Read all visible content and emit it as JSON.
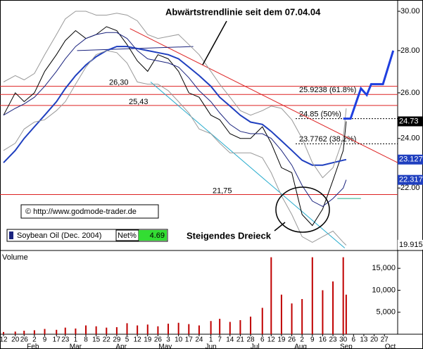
{
  "chart_data": {
    "type": "line",
    "log_scale": true,
    "title": "Abwärtstrendlinie seit dem 07.04.04",
    "pattern_label": "Steigendes Dreieck",
    "copyright": "© http://www.godmode-trader.de",
    "instrument": "Soybean Oil (Dec. 2004)",
    "net_label": "Net%",
    "net_value": 4.69,
    "net_color": "#33dd33",
    "xlim": [
      12,
      280
    ],
    "ylim": [
      19.74,
      30.6
    ],
    "yticks": [
      {
        "value": 22,
        "label": "22.00"
      },
      {
        "value": 24,
        "label": "24.00"
      },
      {
        "value": 26,
        "label": "26.00"
      },
      {
        "value": 28,
        "label": "28.00"
      },
      {
        "value": 30,
        "label": "30.00"
      }
    ],
    "xticks": [
      {
        "value": 12,
        "label": "12"
      },
      {
        "value": 20,
        "label": "20"
      },
      {
        "value": 26,
        "label": "26"
      },
      {
        "value": 33,
        "label": "2"
      },
      {
        "value": 40,
        "label": "9"
      },
      {
        "value": 48,
        "label": "17"
      },
      {
        "value": 54,
        "label": "23"
      },
      {
        "value": 61,
        "label": "1"
      },
      {
        "value": 68,
        "label": "8"
      },
      {
        "value": 75,
        "label": "15"
      },
      {
        "value": 82,
        "label": "22"
      },
      {
        "value": 89,
        "label": "29"
      },
      {
        "value": 96,
        "label": "5"
      },
      {
        "value": 103,
        "label": "12"
      },
      {
        "value": 110,
        "label": "19"
      },
      {
        "value": 117,
        "label": "26"
      },
      {
        "value": 124,
        "label": "3"
      },
      {
        "value": 131,
        "label": "10"
      },
      {
        "value": 138,
        "label": "17"
      },
      {
        "value": 145,
        "label": "24"
      },
      {
        "value": 153,
        "label": "1"
      },
      {
        "value": 159,
        "label": "7"
      },
      {
        "value": 166,
        "label": "14"
      },
      {
        "value": 173,
        "label": "21"
      },
      {
        "value": 180,
        "label": "28"
      },
      {
        "value": 188,
        "label": "6"
      },
      {
        "value": 194,
        "label": "12"
      },
      {
        "value": 201,
        "label": "19"
      },
      {
        "value": 208,
        "label": "26"
      },
      {
        "value": 215,
        "label": "2"
      },
      {
        "value": 222,
        "label": "9"
      },
      {
        "value": 229,
        "label": "16"
      },
      {
        "value": 236,
        "label": "23"
      },
      {
        "value": 243,
        "label": "30"
      },
      {
        "value": 250,
        "label": "6"
      },
      {
        "value": 257,
        "label": "13"
      },
      {
        "value": 264,
        "label": "20"
      },
      {
        "value": 271,
        "label": "27"
      }
    ],
    "month_ticks": [
      {
        "value": 32,
        "label": "Feb"
      },
      {
        "value": 61,
        "label": "Mar"
      },
      {
        "value": 92,
        "label": "Apr"
      },
      {
        "value": 122,
        "label": "May"
      },
      {
        "value": 153,
        "label": "Jun"
      },
      {
        "value": 183,
        "label": "Jul"
      },
      {
        "value": 214,
        "label": "Aug"
      },
      {
        "value": 245,
        "label": "Sep"
      },
      {
        "value": 275,
        "label": "Oct"
      }
    ],
    "x": [
      12,
      20,
      26,
      33,
      40,
      48,
      54,
      61,
      68,
      75,
      82,
      89,
      96,
      103,
      110,
      117,
      124,
      131,
      138,
      145,
      153,
      159,
      166,
      173,
      180,
      188,
      194,
      201,
      208,
      215,
      222,
      229,
      236,
      243,
      245
    ],
    "series": [
      {
        "color": "#000000",
        "width": 1,
        "values": [
          25.0,
          26.0,
          25.6,
          26.0,
          27.0,
          27.8,
          28.5,
          29.0,
          28.6,
          28.8,
          29.2,
          29.0,
          28.3,
          27.5,
          27.0,
          27.8,
          27.6,
          27.0,
          26.0,
          25.8,
          25.0,
          24.8,
          24.2,
          24.0,
          24.0,
          24.5,
          23.8,
          22.8,
          22.6,
          21.0,
          20.6,
          21.2,
          22.3,
          23.5,
          24.73
        ]
      },
      {
        "color": "#1f3fbf",
        "width": 2,
        "values": [
          23.0,
          23.5,
          24.0,
          24.5,
          25.0,
          25.6,
          26.2,
          26.8,
          27.3,
          27.7,
          28.0,
          28.2,
          28.2,
          28.1,
          28.0,
          27.9,
          27.8,
          27.6,
          27.2,
          26.8,
          26.3,
          25.8,
          25.4,
          25.0,
          24.7,
          24.6,
          24.3,
          23.9,
          23.5,
          23.1,
          22.9,
          22.9,
          23.0,
          23.1,
          23.127
        ]
      },
      {
        "color": "#1a237e",
        "width": 1,
        "values": [
          25.0,
          25.3,
          25.5,
          25.8,
          26.3,
          27.0,
          27.6,
          28.2,
          28.6,
          28.8,
          28.9,
          28.9,
          28.6,
          28.0,
          27.6,
          27.5,
          27.4,
          27.2,
          26.7,
          26.1,
          25.6,
          25.1,
          24.6,
          24.3,
          24.2,
          24.2,
          24.0,
          23.5,
          22.9,
          22.1,
          21.5,
          21.3,
          21.6,
          22.0,
          22.317
        ]
      },
      {
        "color": "#999999",
        "width": 1,
        "values": [
          26.5,
          26.8,
          26.6,
          26.9,
          27.8,
          28.8,
          29.6,
          30.0,
          30.0,
          29.8,
          29.8,
          29.9,
          29.8,
          29.5,
          28.8,
          28.6,
          28.7,
          28.8,
          28.3,
          27.8,
          27.0,
          26.4,
          25.8,
          25.2,
          25.0,
          25.2,
          25.4,
          25.3,
          24.8,
          24.0,
          23.0,
          22.4,
          22.8,
          24.0,
          25.3
        ]
      },
      {
        "color": "#999999",
        "width": 1,
        "values": [
          23.5,
          23.8,
          24.4,
          24.7,
          24.8,
          25.2,
          25.6,
          26.4,
          27.2,
          27.8,
          28.0,
          27.9,
          27.4,
          26.5,
          26.4,
          26.4,
          26.1,
          25.6,
          25.1,
          24.4,
          24.2,
          23.8,
          23.4,
          23.4,
          23.4,
          23.2,
          22.6,
          21.7,
          21.0,
          20.2,
          20.0,
          20.2,
          20.4,
          20.0,
          19.9
        ]
      }
    ],
    "projection": {
      "color": "#1f3fdf",
      "x": [
        243,
        248,
        255,
        259,
        262,
        270,
        277
      ],
      "values": [
        24.85,
        24.85,
        26.2,
        25.9,
        26.4,
        26.4,
        28.0
      ]
    },
    "trendlines": [
      {
        "color": "#dd2222",
        "x": [
          98,
          280
        ],
        "values": [
          29.1,
          23.0
        ]
      },
      {
        "color": "#22aacc",
        "x": [
          112,
          244
        ],
        "values": [
          26.5,
          19.8
        ]
      },
      {
        "color": "#1a237e",
        "x": [
          62,
          141
        ],
        "values": [
          28.0,
          28.2
        ]
      },
      {
        "color": "#22aa88",
        "x": [
          239,
          255
        ],
        "values": [
          21.6,
          21.6
        ]
      }
    ],
    "levels": [
      {
        "value": 26.3,
        "label": "26,30",
        "color": "#dd2222",
        "style": "solid"
      },
      {
        "value": 25.43,
        "label": "25,43",
        "color": "#dd2222",
        "style": "solid"
      },
      {
        "value": 21.75,
        "label": "21,75",
        "color": "#dd2222",
        "style": "solid"
      },
      {
        "value": 25.9238,
        "label": "25.9238 (61.8%)",
        "color": "#dd2222",
        "style": "solid"
      },
      {
        "value": 24.85,
        "label": "24.85 (50%)",
        "color": "#000000",
        "style": "dotted"
      },
      {
        "value": 23.7762,
        "label": "23.7762 (38.2%)",
        "color": "#000000",
        "style": "dotted"
      }
    ],
    "price_markers": [
      {
        "value": 24.73,
        "color": "#000000"
      },
      {
        "value": 23.127,
        "color": "#1f3fbf"
      },
      {
        "value": 22.317,
        "color": "#1f3fbf"
      },
      {
        "value": 19.915,
        "color": "#ffffff"
      }
    ],
    "volume": {
      "label": "Volume",
      "color": "#c00000",
      "ylim": [
        0,
        18400
      ],
      "yticks": [
        {
          "value": 5000,
          "label": "5,000"
        },
        {
          "value": 10000,
          "label": "10,000"
        },
        {
          "value": 15000,
          "label": "15,000"
        }
      ],
      "values": [
        500,
        600,
        800,
        900,
        1200,
        1000,
        1500,
        1300,
        2000,
        1800,
        1500,
        1600,
        2500,
        2000,
        2200,
        1800,
        2400,
        2600,
        2300,
        2000,
        3000,
        3500,
        2800,
        3200,
        4000,
        6000,
        17500,
        9000,
        7000,
        8000,
        17500,
        10000,
        12000,
        17500,
        9000
      ]
    }
  }
}
